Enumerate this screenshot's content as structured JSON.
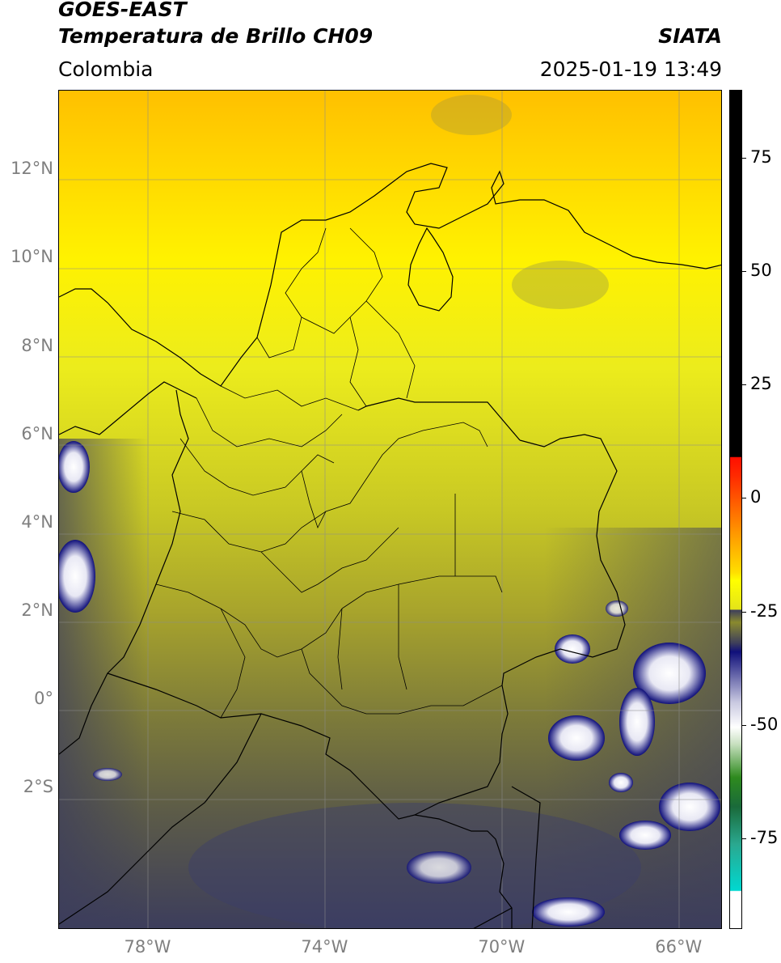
{
  "header": {
    "satellite": "GOES-EAST",
    "product": "Temperatura de Brillo CH09",
    "organization": "SIATA",
    "region": "Colombia",
    "timestamp": "2025-01-19 13:49"
  },
  "map": {
    "lat_range": [
      -5.2,
      13.8
    ],
    "lon_range": [
      -80.0,
      -65.0
    ],
    "lat_ticks": [
      {
        "value": 12,
        "label": "12°N"
      },
      {
        "value": 10,
        "label": "10°N"
      },
      {
        "value": 8,
        "label": "8°N"
      },
      {
        "value": 6,
        "label": "6°N"
      },
      {
        "value": 4,
        "label": "4°N"
      },
      {
        "value": 2,
        "label": "2°N"
      },
      {
        "value": 0,
        "label": "0°"
      },
      {
        "value": -2,
        "label": "2°S"
      }
    ],
    "lon_ticks": [
      {
        "value": -78,
        "label": "78°W"
      },
      {
        "value": -74,
        "label": "74°W"
      },
      {
        "value": -70,
        "label": "70°W"
      },
      {
        "value": -66,
        "label": "66°W"
      }
    ],
    "grid": true
  },
  "colorbar": {
    "range": [
      -95,
      90
    ],
    "ticks": [
      {
        "value": 75,
        "label": "75"
      },
      {
        "value": 50,
        "label": "50"
      },
      {
        "value": 25,
        "label": "25"
      },
      {
        "value": 0,
        "label": "0"
      },
      {
        "value": -25,
        "label": "-25"
      },
      {
        "value": -50,
        "label": "-50"
      },
      {
        "value": -75,
        "label": "-75"
      }
    ],
    "colors": {
      "black": "#000000",
      "red": "#ff2a00",
      "orange": "#ff9a00",
      "yellow": "#ffff00",
      "olive": "#8a8a2e",
      "slate": "#3c3d5c",
      "navy": "#10107a",
      "white": "#ffffff",
      "green": "#2e8a1e",
      "teal": "#00d8d0"
    }
  }
}
